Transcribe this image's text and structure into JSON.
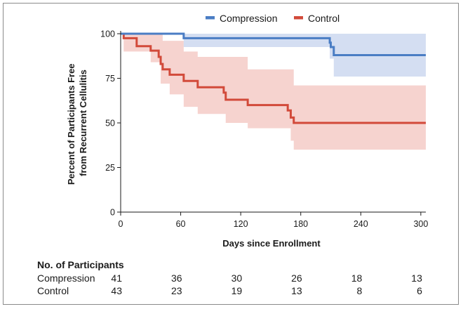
{
  "chart_data": {
    "type": "line",
    "subtype": "kaplan-meier step curve with confidence bands",
    "title": "",
    "xlabel": "Days since Enrollment",
    "ylabel_lines": [
      "Percent of Participants Free",
      "from Recurrent Cellulitis"
    ],
    "xlim": [
      0,
      305
    ],
    "ylim": [
      0,
      100
    ],
    "xticks": [
      0,
      60,
      120,
      180,
      240,
      300
    ],
    "yticks": [
      0,
      25,
      50,
      75,
      100
    ],
    "legend_position": "top-center",
    "series": [
      {
        "name": "Compression",
        "color": "#4a7dc4",
        "band_color": "#c5d3ee",
        "steps": [
          [
            0,
            100
          ],
          [
            63,
            97.5
          ],
          [
            209,
            95
          ],
          [
            210,
            92.5
          ],
          [
            213,
            88
          ],
          [
            305,
            88
          ]
        ],
        "ci_lower": [
          [
            0,
            100
          ],
          [
            63,
            92.5
          ],
          [
            209,
            86
          ],
          [
            213,
            76
          ],
          [
            305,
            76
          ]
        ],
        "ci_upper": [
          [
            0,
            100
          ],
          [
            63,
            100
          ],
          [
            209,
            100
          ],
          [
            213,
            100
          ],
          [
            305,
            100
          ]
        ]
      },
      {
        "name": "Control",
        "color": "#d24a3a",
        "band_color": "#f6d3cf",
        "steps": [
          [
            0,
            100
          ],
          [
            3,
            97.5
          ],
          [
            16,
            93
          ],
          [
            30,
            90.5
          ],
          [
            38,
            87
          ],
          [
            40,
            83
          ],
          [
            42,
            80
          ],
          [
            49,
            77
          ],
          [
            63,
            73.5
          ],
          [
            77,
            70
          ],
          [
            103,
            67
          ],
          [
            105,
            63
          ],
          [
            127,
            60
          ],
          [
            167,
            57
          ],
          [
            170,
            53
          ],
          [
            173,
            50
          ],
          [
            305,
            50
          ]
        ],
        "ci_lower": [
          [
            0,
            100
          ],
          [
            3,
            90
          ],
          [
            30,
            84
          ],
          [
            40,
            72
          ],
          [
            49,
            66
          ],
          [
            63,
            59
          ],
          [
            77,
            55
          ],
          [
            105,
            50
          ],
          [
            127,
            47
          ],
          [
            170,
            40
          ],
          [
            173,
            35
          ],
          [
            305,
            35
          ]
        ],
        "ci_upper": [
          [
            0,
            100
          ],
          [
            3,
            100
          ],
          [
            42,
            96
          ],
          [
            63,
            90
          ],
          [
            77,
            87
          ],
          [
            127,
            80
          ],
          [
            167,
            80
          ],
          [
            173,
            71
          ],
          [
            305,
            71
          ]
        ]
      }
    ]
  },
  "risk_table": {
    "title": "No. of Participants",
    "days": [
      0,
      60,
      120,
      180,
      240,
      300
    ],
    "rows": [
      {
        "name": "Compression",
        "values": [
          "41",
          "36",
          "30",
          "26",
          "18",
          "13"
        ]
      },
      {
        "name": "Control",
        "values": [
          "43",
          "23",
          "19",
          "13",
          "8",
          "6"
        ]
      }
    ]
  }
}
